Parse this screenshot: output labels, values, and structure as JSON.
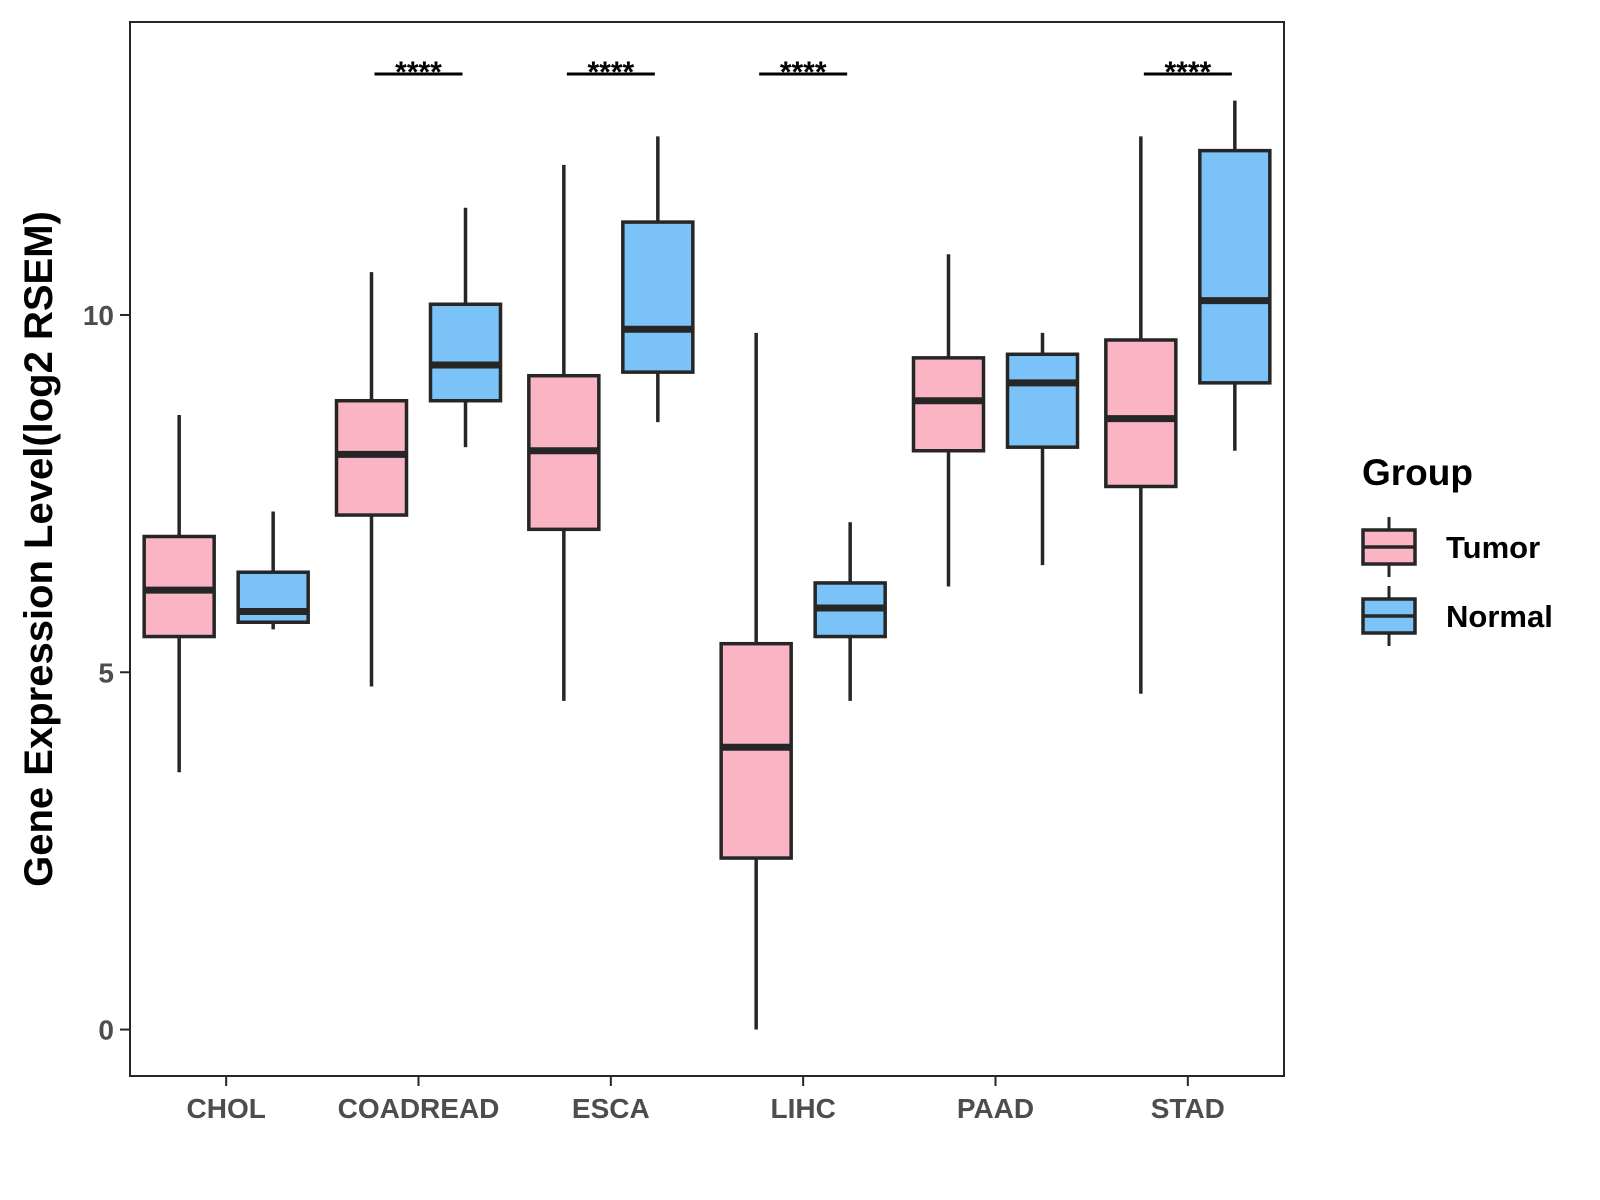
{
  "chart_data": {
    "type": "boxplot",
    "title": "",
    "xlabel": "",
    "ylabel": "Gene Expression Level(log2 RSEM)",
    "ylim": [
      -0.65,
      14.1
    ],
    "yticks": [
      0,
      5,
      10
    ],
    "ytick_labels": [
      "0",
      "5",
      "10"
    ],
    "grid": false,
    "categories": [
      "CHOL",
      "COADREAD",
      "ESCA",
      "LIHC",
      "PAAD",
      "STAD"
    ],
    "legend": {
      "title": "Group",
      "position": "right",
      "entries": [
        "Tumor",
        "Normal"
      ]
    },
    "colors": {
      "Tumor": "#FBB4C4",
      "Normal": "#7BC2F8",
      "outline": "#262626"
    },
    "series": [
      {
        "name": "Tumor",
        "boxes": [
          {
            "min": 3.6,
            "q1": 5.5,
            "median": 6.15,
            "q3": 6.9,
            "max": 8.6
          },
          {
            "min": 4.8,
            "q1": 7.2,
            "median": 8.05,
            "q3": 8.8,
            "max": 10.6
          },
          {
            "min": 4.6,
            "q1": 7.0,
            "median": 8.1,
            "q3": 9.15,
            "max": 12.1
          },
          {
            "min": 0.0,
            "q1": 2.4,
            "median": 3.95,
            "q3": 5.4,
            "max": 9.75
          },
          {
            "min": 6.2,
            "q1": 8.1,
            "median": 8.8,
            "q3": 9.4,
            "max": 10.85
          },
          {
            "min": 4.7,
            "q1": 7.6,
            "median": 8.55,
            "q3": 9.65,
            "max": 12.5
          }
        ]
      },
      {
        "name": "Normal",
        "boxes": [
          {
            "min": 5.6,
            "q1": 5.7,
            "median": 5.85,
            "q3": 6.4,
            "max": 7.25
          },
          {
            "min": 8.15,
            "q1": 8.8,
            "median": 9.3,
            "q3": 10.15,
            "max": 11.5
          },
          {
            "min": 8.5,
            "q1": 9.2,
            "median": 9.8,
            "q3": 11.3,
            "max": 12.5
          },
          {
            "min": 4.6,
            "q1": 5.5,
            "median": 5.9,
            "q3": 6.25,
            "max": 7.1
          },
          {
            "min": 6.5,
            "q1": 8.15,
            "median": 9.05,
            "q3": 9.45,
            "max": 9.75
          },
          {
            "min": 8.1,
            "q1": 9.05,
            "median": 10.2,
            "q3": 12.3,
            "max": 13.0
          }
        ]
      }
    ],
    "significance": [
      {
        "category": "COADREAD",
        "label": "****"
      },
      {
        "category": "ESCA",
        "label": "****"
      },
      {
        "category": "LIHC",
        "label": "****"
      },
      {
        "category": "STAD",
        "label": "****"
      }
    ]
  }
}
